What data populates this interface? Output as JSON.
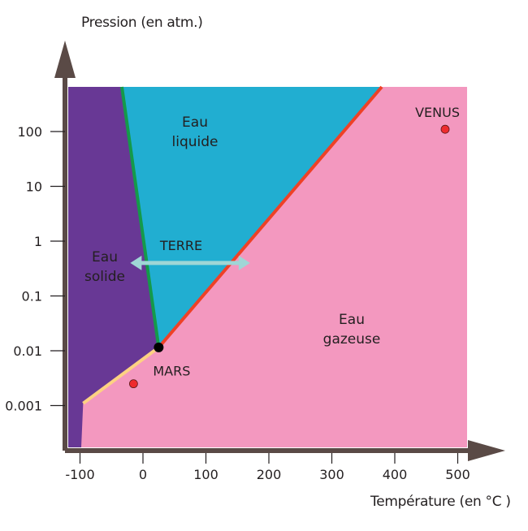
{
  "axes": {
    "y_title": "Pression (en atm.)",
    "x_title": "Température (en °C )",
    "x_ticks": [
      {
        "value": -100,
        "label": "-100"
      },
      {
        "value": 0,
        "label": "0"
      },
      {
        "value": 100,
        "label": "100"
      },
      {
        "value": 200,
        "label": "200"
      },
      {
        "value": 300,
        "label": "300"
      },
      {
        "value": 400,
        "label": "400"
      },
      {
        "value": 500,
        "label": "500"
      }
    ],
    "y_ticks": [
      {
        "value": 0.001,
        "label": "0.001"
      },
      {
        "value": 0.01,
        "label": "0.01"
      },
      {
        "value": 0.1,
        "label": "0.1"
      },
      {
        "value": 1,
        "label": "1"
      },
      {
        "value": 10,
        "label": "10"
      },
      {
        "value": 100,
        "label": "100"
      }
    ],
    "axis_color": "#5a4a46"
  },
  "regions": [
    {
      "name": "solid",
      "lines": [
        "Eau",
        "solide"
      ],
      "color": "#683895"
    },
    {
      "name": "liquid",
      "lines": [
        "Eau",
        "liquide"
      ],
      "color": "#21aed1"
    },
    {
      "name": "gas",
      "lines": [
        "Eau",
        "gazeuse"
      ],
      "color": "#f398bf"
    }
  ],
  "boundaries": {
    "fusion_color": "#149a4a",
    "vaporisation_color": "#ee4126",
    "sublimation_color": "#fdd282",
    "triple_point_color": "#000000"
  },
  "planets": [
    {
      "name": "VENUS",
      "temperature": 480,
      "pressure": 110,
      "color": "#ee2b2e"
    },
    {
      "name": "MARS",
      "temperature": -15,
      "pressure": 0.0025,
      "color": "#ee2b2e"
    }
  ],
  "earth": {
    "label": "TERRE",
    "t_min": -15,
    "t_max": 165,
    "pressure": 0.4,
    "color": "#9fd6d6"
  }
}
